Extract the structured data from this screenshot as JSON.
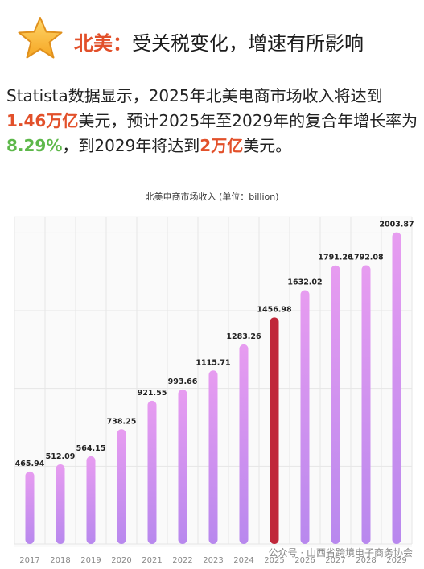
{
  "header": {
    "lead": "北美：",
    "rest": "受关税变化，增速有所影响",
    "icon": "star-icon"
  },
  "intro": {
    "p1": "Statista数据显示，2025年北美电商市场收入将达到",
    "v1": "1.46万亿",
    "p2": "美元，预计2025年至2029年的复合年增长率为",
    "v2": "8.29%",
    "p3": "，到2029年将达到",
    "v3": "2万亿",
    "p4": "美元。"
  },
  "chart_data": {
    "type": "bar",
    "title": "北美电商市场收入 (单位：billion)",
    "categories": [
      "2017",
      "2018",
      "2019",
      "2020",
      "2021",
      "2022",
      "2023",
      "2024",
      "2025",
      "2026",
      "2027",
      "2028",
      "2029"
    ],
    "values": [
      465.94,
      512.09,
      564.15,
      738.25,
      921.55,
      993.66,
      1115.71,
      1283.26,
      1456.98,
      1632.02,
      1791.26,
      1792.08,
      2003.87
    ],
    "value_labels": [
      "465.94",
      "512.09",
      "564.15",
      "738.25",
      "921.55",
      "993.66",
      "1115.71",
      "1283.26",
      "1456.98",
      "1632.02",
      "1791.26",
      "1792.08",
      "2003.87"
    ],
    "highlight_index": 8,
    "ylim": [
      0,
      2100
    ],
    "grid": true,
    "colors": {
      "bar_top": "#e79cf0",
      "bar_bottom": "#b888ee",
      "highlight": "#c0273a",
      "grid": "#e6e6e6"
    }
  },
  "watermark": "公众号 · 山西省跨境电子商务协会"
}
